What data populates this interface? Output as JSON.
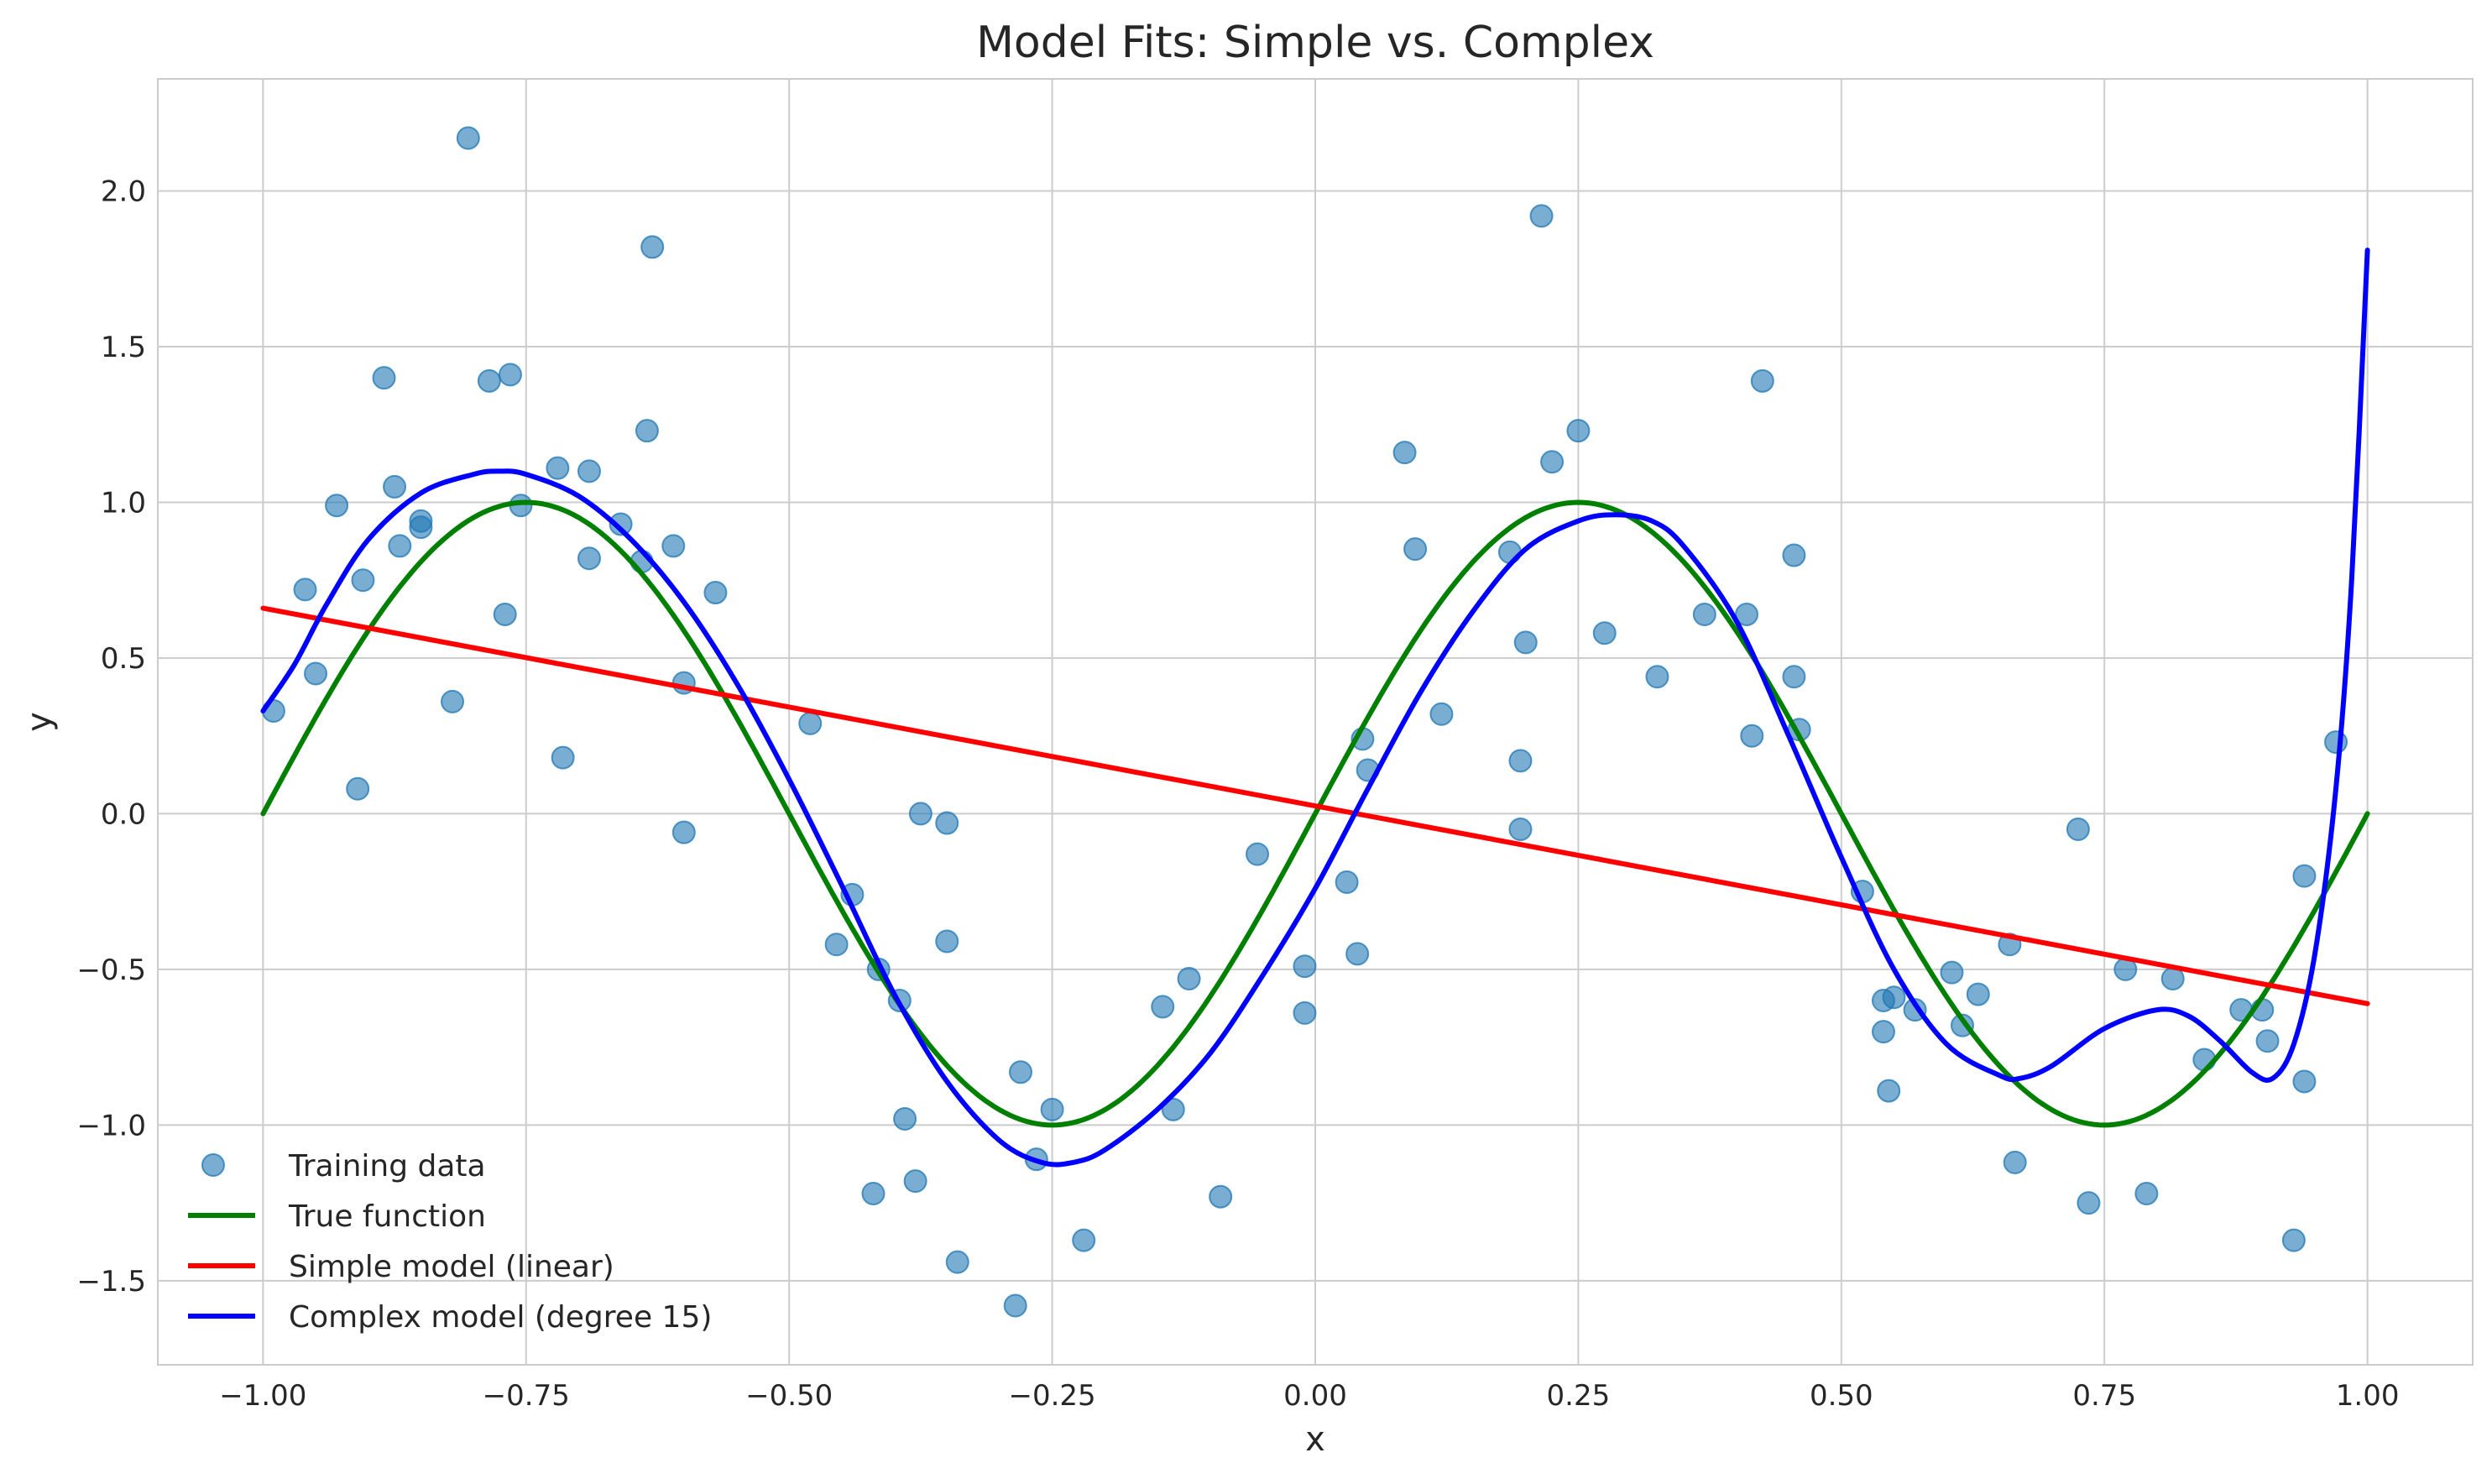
{
  "chart_data": {
    "type": "scatter",
    "title": "Model Fits: Simple vs. Complex",
    "xlabel": "x",
    "ylabel": "y",
    "xlim": [
      -1.1,
      1.1
    ],
    "ylim": [
      -1.77,
      2.36
    ],
    "grid": true,
    "legend_position": "bottom-left",
    "x_ticks": [
      -1.0,
      -0.75,
      -0.5,
      -0.25,
      0.0,
      0.25,
      0.5,
      0.75,
      1.0
    ],
    "x_tick_labels": [
      "−1.00",
      "−0.75",
      "−0.50",
      "−0.25",
      "0.00",
      "0.25",
      "0.50",
      "0.75",
      "1.00"
    ],
    "y_ticks": [
      -1.5,
      -1.0,
      -0.5,
      0.0,
      0.5,
      1.0,
      1.5,
      2.0
    ],
    "y_tick_labels": [
      "−1.5",
      "−1.0",
      "−0.5",
      "0.0",
      "0.5",
      "1.0",
      "1.5",
      "2.0"
    ],
    "series": [
      {
        "name": "Training data",
        "kind": "scatter",
        "color": "#1f77b4",
        "points": [
          [
            -0.99,
            0.33
          ],
          [
            -0.96,
            0.72
          ],
          [
            -0.95,
            0.45
          ],
          [
            -0.93,
            0.99
          ],
          [
            -0.91,
            0.08
          ],
          [
            -0.905,
            0.75
          ],
          [
            -0.885,
            1.4
          ],
          [
            -0.875,
            1.05
          ],
          [
            -0.87,
            0.86
          ],
          [
            -0.85,
            0.92
          ],
          [
            -0.85,
            0.94
          ],
          [
            -0.82,
            0.36
          ],
          [
            -0.805,
            2.17
          ],
          [
            -0.785,
            1.39
          ],
          [
            -0.77,
            0.64
          ],
          [
            -0.765,
            1.41
          ],
          [
            -0.755,
            0.99
          ],
          [
            -0.72,
            1.11
          ],
          [
            -0.715,
            0.18
          ],
          [
            -0.69,
            1.1
          ],
          [
            -0.69,
            0.82
          ],
          [
            -0.66,
            0.93
          ],
          [
            -0.64,
            0.81
          ],
          [
            -0.635,
            1.23
          ],
          [
            -0.63,
            1.82
          ],
          [
            -0.61,
            0.86
          ],
          [
            -0.6,
            -0.06
          ],
          [
            -0.6,
            0.42
          ],
          [
            -0.57,
            0.71
          ],
          [
            -0.48,
            0.29
          ],
          [
            -0.455,
            -0.42
          ],
          [
            -0.44,
            -0.26
          ],
          [
            -0.42,
            -1.22
          ],
          [
            -0.415,
            -0.5
          ],
          [
            -0.395,
            -0.6
          ],
          [
            -0.39,
            -0.98
          ],
          [
            -0.38,
            -1.18
          ],
          [
            -0.375,
            0.0
          ],
          [
            -0.35,
            -0.41
          ],
          [
            -0.35,
            -0.03
          ],
          [
            -0.34,
            -1.44
          ],
          [
            -0.285,
            -1.58
          ],
          [
            -0.28,
            -0.83
          ],
          [
            -0.265,
            -1.11
          ],
          [
            -0.25,
            -0.95
          ],
          [
            -0.22,
            -1.37
          ],
          [
            -0.145,
            -0.62
          ],
          [
            -0.135,
            -0.95
          ],
          [
            -0.12,
            -0.53
          ],
          [
            -0.09,
            -1.23
          ],
          [
            -0.055,
            -0.13
          ],
          [
            -0.01,
            -0.49
          ],
          [
            -0.01,
            -0.64
          ],
          [
            0.03,
            -0.22
          ],
          [
            0.04,
            -0.45
          ],
          [
            0.045,
            0.24
          ],
          [
            0.05,
            0.14
          ],
          [
            0.085,
            1.16
          ],
          [
            0.095,
            0.85
          ],
          [
            0.12,
            0.32
          ],
          [
            0.185,
            0.84
          ],
          [
            0.195,
            0.17
          ],
          [
            0.195,
            -0.05
          ],
          [
            0.2,
            0.55
          ],
          [
            0.215,
            1.92
          ],
          [
            0.225,
            1.13
          ],
          [
            0.25,
            1.23
          ],
          [
            0.275,
            0.58
          ],
          [
            0.325,
            0.44
          ],
          [
            0.37,
            0.64
          ],
          [
            0.41,
            0.64
          ],
          [
            0.415,
            0.25
          ],
          [
            0.425,
            1.39
          ],
          [
            0.455,
            0.83
          ],
          [
            0.455,
            0.44
          ],
          [
            0.46,
            0.27
          ],
          [
            0.52,
            -0.25
          ],
          [
            0.54,
            -0.6
          ],
          [
            0.54,
            -0.7
          ],
          [
            0.545,
            -0.89
          ],
          [
            0.55,
            -0.59
          ],
          [
            0.57,
            -0.63
          ],
          [
            0.605,
            -0.51
          ],
          [
            0.615,
            -0.68
          ],
          [
            0.63,
            -0.58
          ],
          [
            0.66,
            -0.42
          ],
          [
            0.665,
            -1.12
          ],
          [
            0.725,
            -0.05
          ],
          [
            0.735,
            -1.25
          ],
          [
            0.77,
            -0.5
          ],
          [
            0.79,
            -1.22
          ],
          [
            0.815,
            -0.53
          ],
          [
            0.845,
            -0.79
          ],
          [
            0.88,
            -0.63
          ],
          [
            0.9,
            -0.63
          ],
          [
            0.905,
            -0.73
          ],
          [
            0.93,
            -1.37
          ],
          [
            0.94,
            -0.86
          ],
          [
            0.94,
            -0.2
          ],
          [
            0.97,
            0.23
          ]
        ]
      },
      {
        "name": "True function",
        "kind": "line",
        "color": "#008000",
        "expression": "sin(2πx)",
        "domain": [
          -1.0,
          1.0
        ]
      },
      {
        "name": "Simple model (linear)",
        "kind": "line",
        "color": "#ff0000",
        "points": [
          [
            -1.0,
            0.66
          ],
          [
            1.0,
            -0.61
          ]
        ]
      },
      {
        "name": "Complex model (degree 15)",
        "kind": "line",
        "color": "#0000ff",
        "points": [
          [
            -1.0,
            0.33
          ],
          [
            -0.97,
            0.48
          ],
          [
            -0.94,
            0.67
          ],
          [
            -0.9,
            0.88
          ],
          [
            -0.85,
            1.03
          ],
          [
            -0.8,
            1.09
          ],
          [
            -0.775,
            1.1
          ],
          [
            -0.75,
            1.09
          ],
          [
            -0.7,
            1.02
          ],
          [
            -0.65,
            0.88
          ],
          [
            -0.6,
            0.68
          ],
          [
            -0.55,
            0.42
          ],
          [
            -0.5,
            0.11
          ],
          [
            -0.45,
            -0.23
          ],
          [
            -0.4,
            -0.58
          ],
          [
            -0.35,
            -0.86
          ],
          [
            -0.3,
            -1.05
          ],
          [
            -0.26,
            -1.12
          ],
          [
            -0.23,
            -1.12
          ],
          [
            -0.2,
            -1.08
          ],
          [
            -0.15,
            -0.95
          ],
          [
            -0.1,
            -0.77
          ],
          [
            -0.05,
            -0.52
          ],
          [
            0.0,
            -0.24
          ],
          [
            0.05,
            0.08
          ],
          [
            0.1,
            0.39
          ],
          [
            0.15,
            0.65
          ],
          [
            0.2,
            0.85
          ],
          [
            0.25,
            0.94
          ],
          [
            0.285,
            0.96
          ],
          [
            0.32,
            0.94
          ],
          [
            0.35,
            0.86
          ],
          [
            0.4,
            0.62
          ],
          [
            0.45,
            0.25
          ],
          [
            0.5,
            -0.14
          ],
          [
            0.55,
            -0.5
          ],
          [
            0.6,
            -0.74
          ],
          [
            0.65,
            -0.84
          ],
          [
            0.67,
            -0.85
          ],
          [
            0.7,
            -0.81
          ],
          [
            0.75,
            -0.69
          ],
          [
            0.8,
            -0.63
          ],
          [
            0.83,
            -0.65
          ],
          [
            0.86,
            -0.73
          ],
          [
            0.89,
            -0.83
          ],
          [
            0.91,
            -0.85
          ],
          [
            0.93,
            -0.74
          ],
          [
            0.95,
            -0.45
          ],
          [
            0.97,
            0.08
          ],
          [
            0.985,
            0.75
          ],
          [
            1.0,
            1.81
          ]
        ]
      }
    ]
  }
}
